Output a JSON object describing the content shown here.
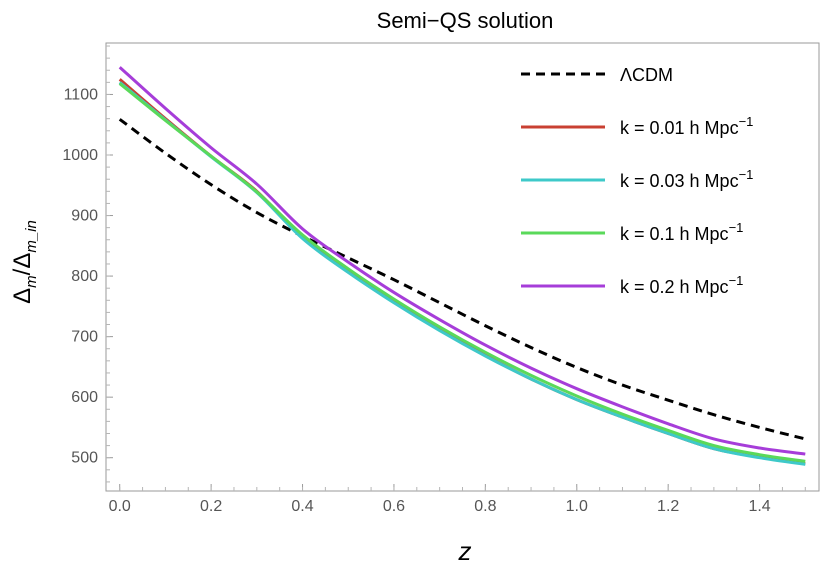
{
  "chart_data": {
    "type": "line",
    "title": "Semi−QS solution",
    "xlabel": "z",
    "ylabel_parts": {
      "delta": "Δ",
      "sub1": "m",
      "slash": "/",
      "sub2": "m_in"
    },
    "xlim": [
      -0.03,
      1.53
    ],
    "ylim": [
      445,
      1185
    ],
    "xticks": [
      "0.0",
      "0.2",
      "0.4",
      "0.6",
      "0.8",
      "1.0",
      "1.2",
      "1.4"
    ],
    "xtick_values": [
      0,
      0.2,
      0.4,
      0.6,
      0.8,
      1.0,
      1.2,
      1.4
    ],
    "yticks": [
      "500",
      "600",
      "700",
      "800",
      "900",
      "1000",
      "1100"
    ],
    "ytick_values": [
      500,
      600,
      700,
      800,
      900,
      1000,
      1100
    ],
    "legend_position": "top-right",
    "x": [
      0.0,
      0.1,
      0.2,
      0.3,
      0.4,
      0.5,
      0.6,
      0.7,
      0.8,
      0.9,
      1.0,
      1.1,
      1.2,
      1.3,
      1.4,
      1.5
    ],
    "series": [
      {
        "name": "ΛCDM",
        "color": "#000000",
        "dash": true,
        "values": [
          1059,
          1003,
          951,
          905,
          866,
          830,
          794,
          756,
          718,
          682,
          649,
          620,
          595,
          571,
          550,
          531
        ]
      },
      {
        "name_parts": [
          "k = 0.01 h Mpc",
          "−1"
        ],
        "color": "#c94032",
        "dash": false,
        "values": [
          1125,
          1060,
          998,
          940,
          864,
          808,
          758,
          712,
          669,
          630,
          596,
          567,
          540,
          515,
          501,
          490
        ]
      },
      {
        "name_parts": [
          "k = 0.03 h Mpc",
          "−1"
        ],
        "color": "#3ec9c9",
        "dash": false,
        "values": [
          1120,
          1058,
          997,
          938,
          862,
          806,
          756,
          710,
          668,
          630,
          596,
          567,
          540,
          515,
          500,
          489
        ]
      },
      {
        "name_parts": [
          "k = 0.1 h Mpc",
          "−1"
        ],
        "color": "#5ad95a",
        "dash": false,
        "values": [
          1118,
          1057,
          998,
          939,
          868,
          812,
          762,
          716,
          674,
          636,
          602,
          572,
          545,
          520,
          505,
          494
        ]
      },
      {
        "name_parts": [
          "k = 0.2 h Mpc",
          "−1"
        ],
        "color": "#a63dd9",
        "dash": false,
        "values": [
          1145,
          1077,
          1012,
          952,
          878,
          823,
          773,
          728,
          686,
          648,
          614,
          584,
          556,
          531,
          516,
          506
        ]
      }
    ]
  }
}
